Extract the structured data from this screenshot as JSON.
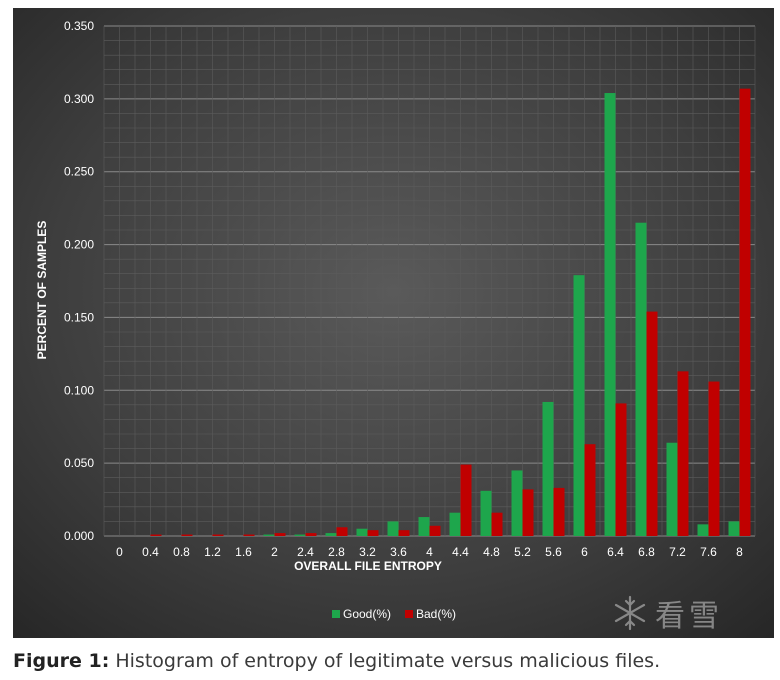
{
  "chart_data": {
    "type": "bar",
    "xlabel": "OVERALL FILE ENTROPY",
    "ylabel": "PERCENT OF SAMPLES",
    "ylim": [
      0,
      0.35
    ],
    "yticks": [
      "0.000",
      "0.050",
      "0.100",
      "0.150",
      "0.200",
      "0.250",
      "0.300",
      "0.350"
    ],
    "grid": true,
    "legend_position": "bottom",
    "categories": [
      "0",
      "0.4",
      "0.8",
      "1.2",
      "1.6",
      "2",
      "2.4",
      "2.8",
      "3.2",
      "3.6",
      "4",
      "4.4",
      "4.8",
      "5.2",
      "5.6",
      "6",
      "6.4",
      "6.8",
      "7.2",
      "7.6",
      "8"
    ],
    "series": [
      {
        "name": "Good(%)",
        "color": "#1ea64c",
        "values": [
          0.0,
          0.0,
          0.0,
          0.0,
          0.0,
          0.001,
          0.001,
          0.002,
          0.005,
          0.01,
          0.013,
          0.016,
          0.031,
          0.045,
          0.092,
          0.179,
          0.304,
          0.215,
          0.064,
          0.008,
          0.01
        ]
      },
      {
        "name": "Bad(%)",
        "color": "#c00000",
        "values": [
          0.0,
          0.001,
          0.001,
          0.001,
          0.001,
          0.002,
          0.002,
          0.006,
          0.004,
          0.004,
          0.007,
          0.049,
          0.016,
          0.032,
          0.033,
          0.063,
          0.091,
          0.154,
          0.113,
          0.106,
          0.307
        ]
      }
    ]
  },
  "caption": {
    "label": "Figure 1:",
    "text": " Histogram of entropy of legitimate versus malicious files."
  },
  "watermark": {
    "text": "看雪",
    "icon": "snowflake-icon"
  }
}
